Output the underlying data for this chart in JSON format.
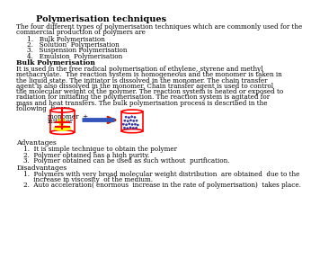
{
  "title": "Polymerisation techniques",
  "title_fontsize": 7,
  "body_fontsize": 5.2,
  "bold_fontsize": 5.5,
  "intro_text": "The four different types of polymerisation techniques which are commonly used for the commercial production of polymers are",
  "list_items": [
    "1.   Bulk Polymerisation",
    "2.   Solution  Polymerisation",
    "3.   Suspension Polymerisation",
    "4.   Emulsion  Polymerisation"
  ],
  "section_title": "Bulk Polymerisation",
  "bulk_text_lines": [
    "It is used in the free radical polymerisation of ethylene, styrene and methyl",
    "methacrylate.  The reaction system is homogeneous and the monomer is taken in",
    "the liquid state. The initiator is dissolved in the monomer. The chain transfer",
    "agent is also dissolved in the monomer. Chain transfer agent is used to control",
    "the molecular weight of the polymer. The reaction system is heated or exposed to",
    "radiation for initiating the polymerisation. The reaction system is agitated for",
    "mass and heat transfers. The bulk polymerisation process is described in the",
    "following  figure."
  ],
  "intro_text_lines": [
    "The four different types of polymerisation techniques which are commonly used for the",
    "commercial production of polymers are"
  ],
  "diagram_label1": "monomer  +",
  "diagram_label2": "initiator",
  "advantages_title": "Advantages",
  "advantages": [
    "1.  It is simple technique to obtain the polymer",
    "2.  Polymer obtained has a high purity.",
    "3.  Polymer obtained can be used as such without  purification."
  ],
  "disadvantages_title": "Disadvantages",
  "disadvantages": [
    "1.  Polymers with very broad molecular weight distribution  are obtained  due to the",
    "     increase in viscosity  of the medium.",
    "2.  Auto acceleration( enormous  increase in the rate of polymerisation)  takes place."
  ],
  "bg_color": "#ffffff",
  "text_color": "#000000",
  "red_color": "#ff0000",
  "yellow_color": "#ffff00",
  "blue_color": "#0000cc",
  "arrow_color": "#cc0000"
}
